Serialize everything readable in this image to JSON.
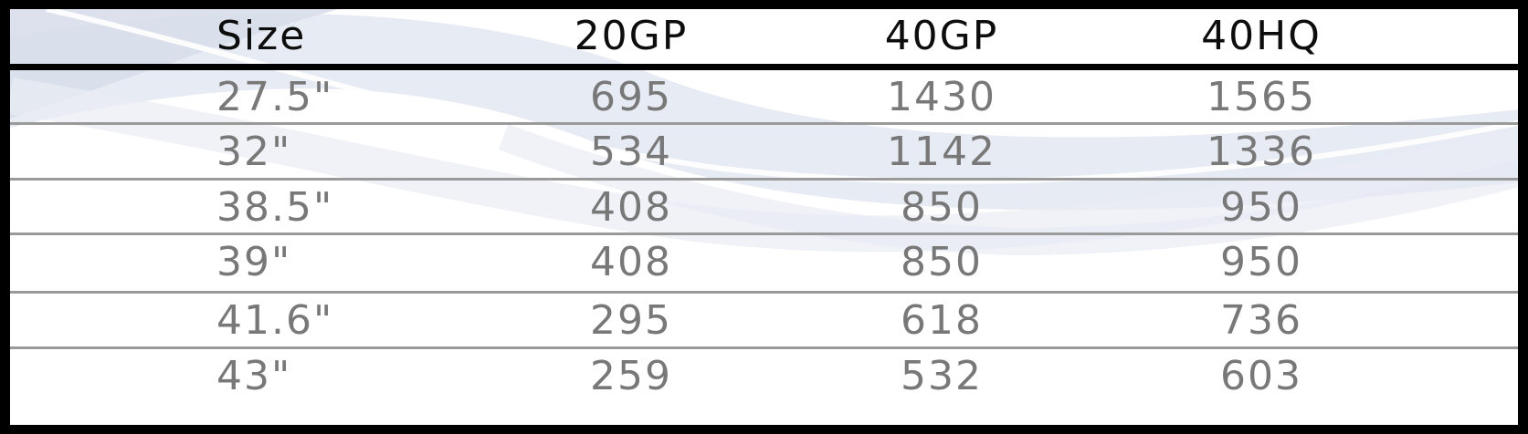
{
  "table": {
    "headers": [
      "Size",
      "20GP",
      "40GP",
      "40HQ"
    ],
    "rows": [
      [
        "27.5\"",
        "695",
        "1430",
        "1565"
      ],
      [
        "32\"",
        "534",
        "1142",
        "1336"
      ],
      [
        "38.5\"",
        "408",
        "850",
        "950"
      ],
      [
        "39\"",
        "408",
        "850",
        "950"
      ],
      [
        "41.6\"",
        "295",
        "618",
        "736"
      ],
      [
        "43\"",
        "259",
        "532",
        "603"
      ]
    ]
  },
  "colors": {
    "border": "#000000",
    "header_text": "#0d0d0d",
    "body_text": "#787878",
    "row_divider": "#9a9a9a",
    "swoosh": "#dfe4ef"
  }
}
